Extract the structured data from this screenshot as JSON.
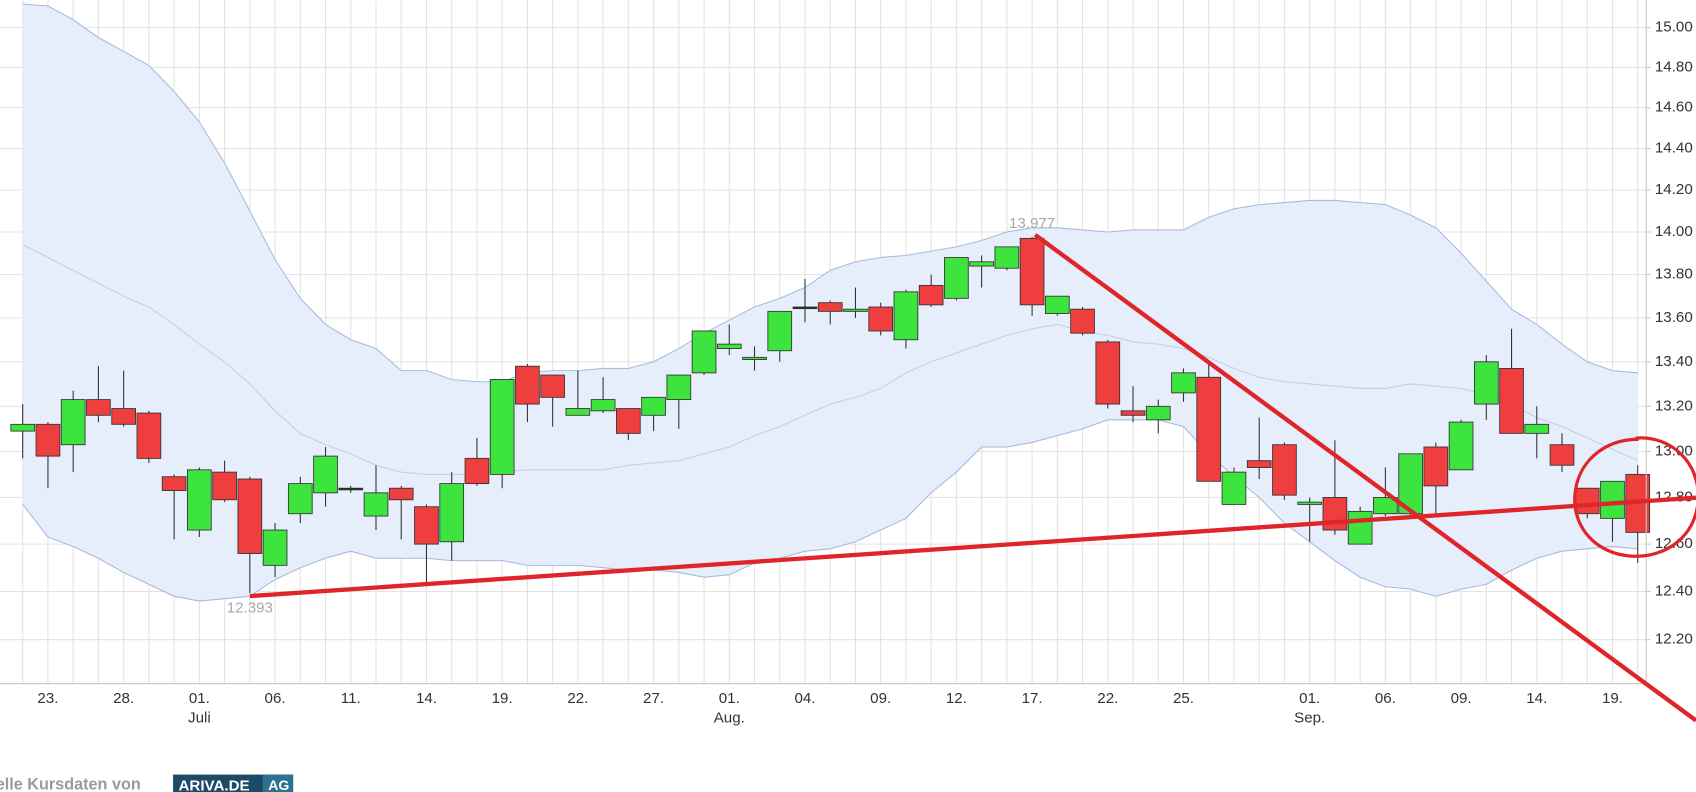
{
  "chart_data": {
    "type": "candlestick",
    "log_scale": true,
    "grid": true,
    "up_color": "#3ee43e",
    "down_color": "#ee3e3e",
    "band_fill": "#e6eefb",
    "band_line_color": "#a9bbdc",
    "band_middle_color": "#c3cfe6",
    "ylim": [
      12.02,
      15.14
    ],
    "yticks": [
      {
        "value": 12.2,
        "label": "12.20"
      },
      {
        "value": 12.4,
        "label": "12.40"
      },
      {
        "value": 12.6,
        "label": "12.60"
      },
      {
        "value": 12.8,
        "label": "12.80"
      },
      {
        "value": 13.0,
        "label": "13.00"
      },
      {
        "value": 13.2,
        "label": "13.20"
      },
      {
        "value": 13.4,
        "label": "13.40"
      },
      {
        "value": 13.6,
        "label": "13.60"
      },
      {
        "value": 13.8,
        "label": "13.80"
      },
      {
        "value": 14.0,
        "label": "14.00"
      },
      {
        "value": 14.2,
        "label": "14.20"
      },
      {
        "value": 14.4,
        "label": "14.40"
      },
      {
        "value": 14.6,
        "label": "14.60"
      },
      {
        "value": 14.8,
        "label": "14.80"
      },
      {
        "value": 15.0,
        "label": "15.00"
      }
    ],
    "categories": [
      null,
      "23.",
      null,
      null,
      "28.",
      null,
      null,
      "01.",
      null,
      null,
      "06.",
      null,
      null,
      "11.",
      null,
      null,
      "14.",
      null,
      null,
      "19.",
      null,
      null,
      "22.",
      null,
      null,
      "27.",
      null,
      null,
      "01.",
      null,
      null,
      "04.",
      null,
      null,
      "09.",
      null,
      null,
      "12.",
      null,
      null,
      "17.",
      null,
      null,
      "22.",
      null,
      null,
      "25.",
      null,
      null,
      null,
      null,
      "01.",
      null,
      null,
      "06.",
      null,
      null,
      "09.",
      null,
      null,
      "14.",
      null,
      null,
      "19.",
      null
    ],
    "months": [
      null,
      null,
      null,
      null,
      null,
      null,
      null,
      "Juli",
      null,
      null,
      null,
      null,
      null,
      null,
      null,
      null,
      null,
      null,
      null,
      null,
      null,
      null,
      null,
      null,
      null,
      null,
      null,
      null,
      "Aug.",
      null,
      null,
      null,
      null,
      null,
      null,
      null,
      null,
      null,
      null,
      null,
      null,
      null,
      null,
      null,
      null,
      null,
      null,
      null,
      null,
      null,
      null,
      "Sep.",
      null,
      null,
      null,
      null,
      null,
      null,
      null,
      null,
      null,
      null,
      null,
      null,
      null
    ],
    "open": [
      13.09,
      13.12,
      13.03,
      13.23,
      13.19,
      13.17,
      12.89,
      12.66,
      12.91,
      12.88,
      12.51,
      12.73,
      12.82,
      12.84,
      12.72,
      12.84,
      12.76,
      12.61,
      12.97,
      12.9,
      13.38,
      13.34,
      13.16,
      13.18,
      13.19,
      13.16,
      13.23,
      13.35,
      13.46,
      13.41,
      13.45,
      13.65,
      13.67,
      13.63,
      13.65,
      13.5,
      13.75,
      13.69,
      13.84,
      13.83,
      13.97,
      13.62,
      13.64,
      13.49,
      13.18,
      13.14,
      13.26,
      13.33,
      12.77,
      12.96,
      13.03,
      12.77,
      12.8,
      12.6,
      12.73,
      12.73,
      13.02,
      12.92,
      13.21,
      13.37,
      13.08,
      13.03,
      12.84,
      12.71,
      12.9
    ],
    "high": [
      13.21,
      13.13,
      13.27,
      13.38,
      13.36,
      13.18,
      12.9,
      12.93,
      12.96,
      12.89,
      12.69,
      12.89,
      13.02,
      12.85,
      12.94,
      12.85,
      12.77,
      12.91,
      13.06,
      13.32,
      13.39,
      13.34,
      13.36,
      13.33,
      13.19,
      13.24,
      13.34,
      13.54,
      13.57,
      13.47,
      13.63,
      13.78,
      13.68,
      13.74,
      13.67,
      13.73,
      13.8,
      13.88,
      13.89,
      13.93,
      13.977,
      13.7,
      13.65,
      13.5,
      13.29,
      13.23,
      13.37,
      13.39,
      12.93,
      13.15,
      13.04,
      12.8,
      13.05,
      12.76,
      12.93,
      12.99,
      13.04,
      13.14,
      13.43,
      13.55,
      13.2,
      13.08,
      12.84,
      12.87,
      12.94
    ],
    "low": [
      12.97,
      12.84,
      12.91,
      13.13,
      13.11,
      12.95,
      12.62,
      12.63,
      12.78,
      12.393,
      12.46,
      12.69,
      12.76,
      12.82,
      12.66,
      12.62,
      12.44,
      12.53,
      12.85,
      12.84,
      13.13,
      13.11,
      13.16,
      13.17,
      13.05,
      13.09,
      13.1,
      13.34,
      13.43,
      13.36,
      13.4,
      13.58,
      13.57,
      13.6,
      13.52,
      13.46,
      13.65,
      13.68,
      13.74,
      13.82,
      13.61,
      13.61,
      13.52,
      13.19,
      13.13,
      13.08,
      13.22,
      12.87,
      12.77,
      12.88,
      12.79,
      12.61,
      12.64,
      12.6,
      12.72,
      12.72,
      12.72,
      12.92,
      13.14,
      13.08,
      12.97,
      12.91,
      12.71,
      12.61,
      12.52
    ],
    "close": [
      13.12,
      12.98,
      13.23,
      13.16,
      13.12,
      12.97,
      12.83,
      12.92,
      12.79,
      12.56,
      12.66,
      12.86,
      12.98,
      12.84,
      12.82,
      12.79,
      12.6,
      12.86,
      12.86,
      13.32,
      13.21,
      13.24,
      13.19,
      13.23,
      13.08,
      13.24,
      13.34,
      13.54,
      13.48,
      13.42,
      13.63,
      13.65,
      13.63,
      13.64,
      13.54,
      13.72,
      13.66,
      13.88,
      13.86,
      13.93,
      13.66,
      13.7,
      13.53,
      13.21,
      13.16,
      13.2,
      13.35,
      12.87,
      12.91,
      12.93,
      12.81,
      12.78,
      12.66,
      12.74,
      12.8,
      12.99,
      12.85,
      13.13,
      13.4,
      13.08,
      13.12,
      12.94,
      12.73,
      12.87,
      12.65
    ],
    "bands": {
      "upper": [
        15.12,
        15.11,
        15.04,
        14.95,
        14.88,
        14.81,
        14.68,
        14.53,
        14.33,
        14.1,
        13.87,
        13.69,
        13.57,
        13.5,
        13.46,
        13.36,
        13.36,
        13.32,
        13.31,
        13.31,
        13.35,
        13.36,
        13.36,
        13.37,
        13.37,
        13.4,
        13.46,
        13.53,
        13.59,
        13.65,
        13.69,
        13.74,
        13.82,
        13.86,
        13.88,
        13.89,
        13.91,
        13.93,
        13.96,
        14.0,
        14.02,
        14.02,
        14.01,
        14.0,
        14.01,
        14.01,
        14.01,
        14.07,
        14.11,
        14.13,
        14.14,
        14.15,
        14.15,
        14.14,
        14.13,
        14.08,
        14.02,
        13.9,
        13.77,
        13.64,
        13.57,
        13.48,
        13.4,
        13.36,
        13.35
      ],
      "middle": [
        13.94,
        13.88,
        13.82,
        13.76,
        13.7,
        13.65,
        13.57,
        13.48,
        13.4,
        13.3,
        13.18,
        13.08,
        13.03,
        12.99,
        12.94,
        12.91,
        12.9,
        12.9,
        12.9,
        12.91,
        12.92,
        12.92,
        12.92,
        12.92,
        12.94,
        12.95,
        12.96,
        12.99,
        13.02,
        13.07,
        13.11,
        13.16,
        13.21,
        13.24,
        13.28,
        13.35,
        13.4,
        13.44,
        13.48,
        13.52,
        13.55,
        13.57,
        13.54,
        13.52,
        13.49,
        13.48,
        13.46,
        13.42,
        13.37,
        13.33,
        13.31,
        13.3,
        13.29,
        13.28,
        13.28,
        13.3,
        13.29,
        13.28,
        13.25,
        13.21,
        13.15,
        13.11,
        13.06,
        13.01,
        12.96
      ],
      "lower": [
        12.77,
        12.63,
        12.59,
        12.54,
        12.48,
        12.43,
        12.38,
        12.36,
        12.37,
        12.38,
        12.45,
        12.5,
        12.54,
        12.57,
        12.54,
        12.54,
        12.54,
        12.53,
        12.53,
        12.53,
        12.51,
        12.51,
        12.51,
        12.5,
        12.49,
        12.49,
        12.48,
        12.46,
        12.47,
        12.52,
        12.54,
        12.57,
        12.58,
        12.61,
        12.66,
        12.71,
        12.82,
        12.91,
        13.02,
        13.02,
        13.04,
        13.07,
        13.1,
        13.14,
        13.14,
        13.14,
        13.11,
        12.99,
        12.89,
        12.8,
        12.69,
        12.61,
        12.53,
        12.46,
        12.42,
        12.41,
        12.38,
        12.41,
        12.43,
        12.49,
        12.54,
        12.57,
        12.58,
        12.59,
        12.58
      ]
    },
    "annotations": [
      13.977,
      12.393
    ],
    "source": {
      "text": "elle Kursdaten von",
      "logo": "ARIVA.DE",
      "logo_suffix": "AG"
    }
  }
}
